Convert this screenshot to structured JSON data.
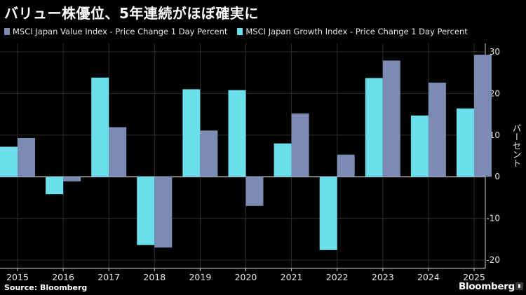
{
  "title": "バリュー株優位、5年連続がほぼ確実に",
  "source": "Source: Bloomberg",
  "brand": "Bloomberg",
  "brand_badge_icon": "bar-chart-icon",
  "colors": {
    "value": "#7B8BB2",
    "growth": "#6BE0EC",
    "background": "#000000",
    "grid": "#2e2e2e"
  },
  "chart_data": {
    "type": "bar",
    "categories": [
      "2015",
      "2016",
      "2017",
      "2018",
      "2019",
      "2020",
      "2021",
      "2022",
      "2023",
      "2024",
      "2025"
    ],
    "series": [
      {
        "name": "MSCI Japan Value Index - Price Change 1 Day Percent",
        "values": [
          9.3,
          -1.1,
          11.9,
          -17.0,
          11.1,
          -7.0,
          15.2,
          5.3,
          27.9,
          22.6,
          29.3
        ]
      },
      {
        "name": "MSCI Japan Growth Index - Price Change 1 Day Percent",
        "values": [
          7.2,
          -4.2,
          23.8,
          -16.4,
          21.0,
          20.8,
          8.0,
          -17.6,
          23.7,
          14.7,
          16.4
        ]
      }
    ],
    "ylabel": "パーセント",
    "ylim": [
      -22,
      32
    ],
    "yticks": [
      30,
      20,
      10,
      0,
      -10,
      -20
    ],
    "grid": true,
    "legend_position": "top-left"
  }
}
